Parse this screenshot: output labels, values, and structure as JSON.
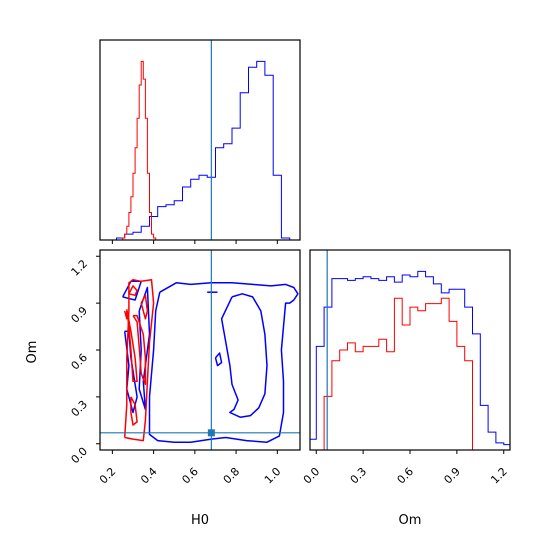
{
  "chart_data": {
    "type": "corner",
    "colors": {
      "series_a": "#0000ff",
      "series_b": "#ff0000",
      "truth": "#1f77b4"
    },
    "truth": {
      "H0": 0.68,
      "Om": 0.07
    },
    "axes": {
      "H0": {
        "label": "H0",
        "range": [
          0.14,
          1.11
        ],
        "ticks": [
          0.2,
          0.4,
          0.6,
          0.8,
          1.0
        ],
        "tick_labels": [
          "0.2",
          "0.4",
          "0.6",
          "0.8",
          "1.0"
        ]
      },
      "Om": {
        "label": "Om",
        "range": [
          -0.04,
          1.24
        ],
        "ticks": [
          0.0,
          0.3,
          0.6,
          0.9,
          1.2
        ],
        "tick_labels": [
          "0.0",
          "0.3",
          "0.6",
          "0.9",
          "1.2"
        ]
      }
    },
    "hist_H0": {
      "series": [
        {
          "color": "#0000ff",
          "edges": [
            0.14,
            0.18,
            0.22,
            0.26,
            0.3,
            0.34,
            0.38,
            0.42,
            0.46,
            0.5,
            0.54,
            0.58,
            0.62,
            0.66,
            0.7,
            0.74,
            0.78,
            0.82,
            0.86,
            0.9,
            0.94,
            0.98,
            1.02,
            1.06,
            1.1
          ],
          "counts": [
            0,
            0,
            1,
            3,
            4,
            7,
            12,
            17,
            18,
            20,
            27,
            31,
            33,
            32,
            47,
            49,
            57,
            75,
            88,
            91,
            84,
            33,
            1,
            0
          ]
        },
        {
          "color": "#ff0000",
          "edges": [
            0.24,
            0.25,
            0.26,
            0.27,
            0.28,
            0.29,
            0.3,
            0.31,
            0.32,
            0.33,
            0.34,
            0.35,
            0.36,
            0.37,
            0.38,
            0.39,
            0.4,
            0.41
          ],
          "counts": [
            0,
            1,
            3,
            7,
            14,
            22,
            34,
            47,
            62,
            79,
            91,
            82,
            62,
            34,
            14,
            3,
            1
          ]
        }
      ]
    },
    "hist_Om": {
      "series": [
        {
          "color": "#0000ff",
          "edges": [
            -0.04,
            0.0,
            0.05,
            0.1,
            0.15,
            0.2,
            0.25,
            0.3,
            0.35,
            0.4,
            0.45,
            0.5,
            0.55,
            0.6,
            0.65,
            0.7,
            0.75,
            0.8,
            0.85,
            0.9,
            0.95,
            1.0,
            1.05,
            1.1,
            1.15,
            1.2,
            1.24
          ],
          "counts": [
            6,
            58,
            80,
            96,
            96,
            95,
            96,
            97,
            96,
            95,
            97,
            94,
            98,
            97,
            100,
            97,
            93,
            88,
            90,
            90,
            80,
            65,
            25,
            10,
            4,
            3
          ]
        },
        {
          "color": "#ff0000",
          "edges": [
            0.05,
            0.1,
            0.15,
            0.2,
            0.25,
            0.3,
            0.35,
            0.4,
            0.45,
            0.5,
            0.55,
            0.6,
            0.65,
            0.7,
            0.75,
            0.8,
            0.85,
            0.9,
            0.95,
            1.0
          ],
          "counts": [
            30,
            50,
            56,
            60,
            55,
            58,
            58,
            62,
            55,
            85,
            70,
            80,
            78,
            82,
            82,
            85,
            72,
            58,
            50
          ]
        }
      ]
    },
    "contours": {
      "series": [
        {
          "color": "#0000ff",
          "paths": [
            [
              [
                0.43,
                0.97
              ],
              [
                0.51,
                1.03
              ],
              [
                0.58,
                1.02
              ],
              [
                0.68,
                1.03
              ],
              [
                0.78,
                1.03
              ],
              [
                0.88,
                1.02
              ],
              [
                0.97,
                1.01
              ],
              [
                1.04,
                1.02
              ],
              [
                1.08,
                1.0
              ],
              [
                1.1,
                0.96
              ],
              [
                1.08,
                0.92
              ],
              [
                1.06,
                0.9
              ],
              [
                1.04,
                0.9
              ],
              [
                1.03,
                0.75
              ],
              [
                1.02,
                0.6
              ],
              [
                1.03,
                0.4
              ],
              [
                1.03,
                0.2
              ],
              [
                1.01,
                0.05
              ],
              [
                0.95,
                0.01
              ],
              [
                0.85,
                0.02
              ],
              [
                0.75,
                0.04
              ],
              [
                0.68,
                0.03
              ],
              [
                0.58,
                0.01
              ],
              [
                0.5,
                0.01
              ],
              [
                0.42,
                0.02
              ],
              [
                0.38,
                0.06
              ],
              [
                0.38,
                0.3
              ],
              [
                0.4,
                0.6
              ],
              [
                0.41,
                0.85
              ],
              [
                0.43,
                0.97
              ]
            ],
            [
              [
                0.78,
                0.94
              ],
              [
                0.73,
                0.8
              ],
              [
                0.75,
                0.65
              ],
              [
                0.77,
                0.5
              ],
              [
                0.78,
                0.38
              ],
              [
                0.81,
                0.28
              ],
              [
                0.79,
                0.22
              ],
              [
                0.77,
                0.2
              ],
              [
                0.82,
                0.17
              ],
              [
                0.87,
                0.18
              ],
              [
                0.91,
                0.23
              ],
              [
                0.94,
                0.32
              ],
              [
                0.95,
                0.5
              ],
              [
                0.94,
                0.7
              ],
              [
                0.92,
                0.85
              ],
              [
                0.88,
                0.94
              ],
              [
                0.83,
                0.96
              ],
              [
                0.78,
                0.94
              ]
            ],
            [
              [
                0.66,
                0.97
              ],
              [
                0.71,
                0.97
              ]
            ],
            [
              [
                0.7,
                0.55
              ],
              [
                0.72,
                0.58
              ],
              [
                0.73,
                0.52
              ],
              [
                0.71,
                0.5
              ],
              [
                0.7,
                0.55
              ]
            ],
            [
              [
                0.25,
                0.94
              ],
              [
                0.29,
                1.04
              ],
              [
                0.34,
                1.04
              ],
              [
                0.31,
                0.92
              ],
              [
                0.25,
                0.94
              ]
            ],
            [
              [
                0.26,
                0.72
              ],
              [
                0.28,
                0.5
              ],
              [
                0.27,
                0.35
              ],
              [
                0.3,
                0.2
              ],
              [
                0.32,
                0.3
              ],
              [
                0.29,
                0.55
              ],
              [
                0.28,
                0.72
              ],
              [
                0.26,
                0.72
              ]
            ],
            [
              [
                0.33,
                0.85
              ],
              [
                0.37,
                1.0
              ],
              [
                0.38,
                0.7
              ],
              [
                0.35,
                0.4
              ],
              [
                0.36,
                0.22
              ],
              [
                0.33,
                0.35
              ],
              [
                0.34,
                0.6
              ],
              [
                0.33,
                0.85
              ]
            ]
          ]
        },
        {
          "color": "#ff0000",
          "paths": [
            [
              [
                0.26,
                0.04
              ],
              [
                0.27,
                0.25
              ],
              [
                0.27,
                0.55
              ],
              [
                0.28,
                0.85
              ],
              [
                0.28,
                1.03
              ],
              [
                0.3,
                1.05
              ],
              [
                0.34,
                1.04
              ],
              [
                0.39,
                1.05
              ],
              [
                0.4,
                0.9
              ],
              [
                0.38,
                0.65
              ],
              [
                0.37,
                0.4
              ],
              [
                0.36,
                0.15
              ],
              [
                0.35,
                0.02
              ],
              [
                0.3,
                0.03
              ],
              [
                0.26,
                0.04
              ]
            ],
            [
              [
                0.28,
                0.96
              ],
              [
                0.3,
                1.01
              ],
              [
                0.32,
                0.98
              ],
              [
                0.31,
                0.95
              ],
              [
                0.28,
                0.96
              ]
            ],
            [
              [
                0.27,
                0.86
              ],
              [
                0.29,
                0.72
              ],
              [
                0.31,
                0.55
              ],
              [
                0.32,
                0.4
              ],
              [
                0.3,
                0.4
              ],
              [
                0.29,
                0.6
              ],
              [
                0.28,
                0.75
              ],
              [
                0.27,
                0.86
              ]
            ],
            [
              [
                0.3,
                0.82
              ],
              [
                0.32,
                0.78
              ],
              [
                0.33,
                0.62
              ],
              [
                0.34,
                0.45
              ],
              [
                0.36,
                0.38
              ],
              [
                0.36,
                0.55
              ],
              [
                0.35,
                0.7
              ],
              [
                0.32,
                0.82
              ],
              [
                0.3,
                0.82
              ]
            ],
            [
              [
                0.34,
                0.9
              ],
              [
                0.36,
                0.95
              ],
              [
                0.37,
                0.85
              ],
              [
                0.36,
                0.8
              ],
              [
                0.34,
                0.9
              ]
            ],
            [
              [
                0.29,
                0.3
              ],
              [
                0.31,
                0.25
              ],
              [
                0.32,
                0.14
              ],
              [
                0.3,
                0.12
              ],
              [
                0.29,
                0.2
              ],
              [
                0.29,
                0.3
              ]
            ],
            [
              [
                0.26,
                0.85
              ],
              [
                0.27,
                0.8
              ],
              [
                0.27,
                0.85
              ]
            ]
          ]
        }
      ]
    }
  }
}
